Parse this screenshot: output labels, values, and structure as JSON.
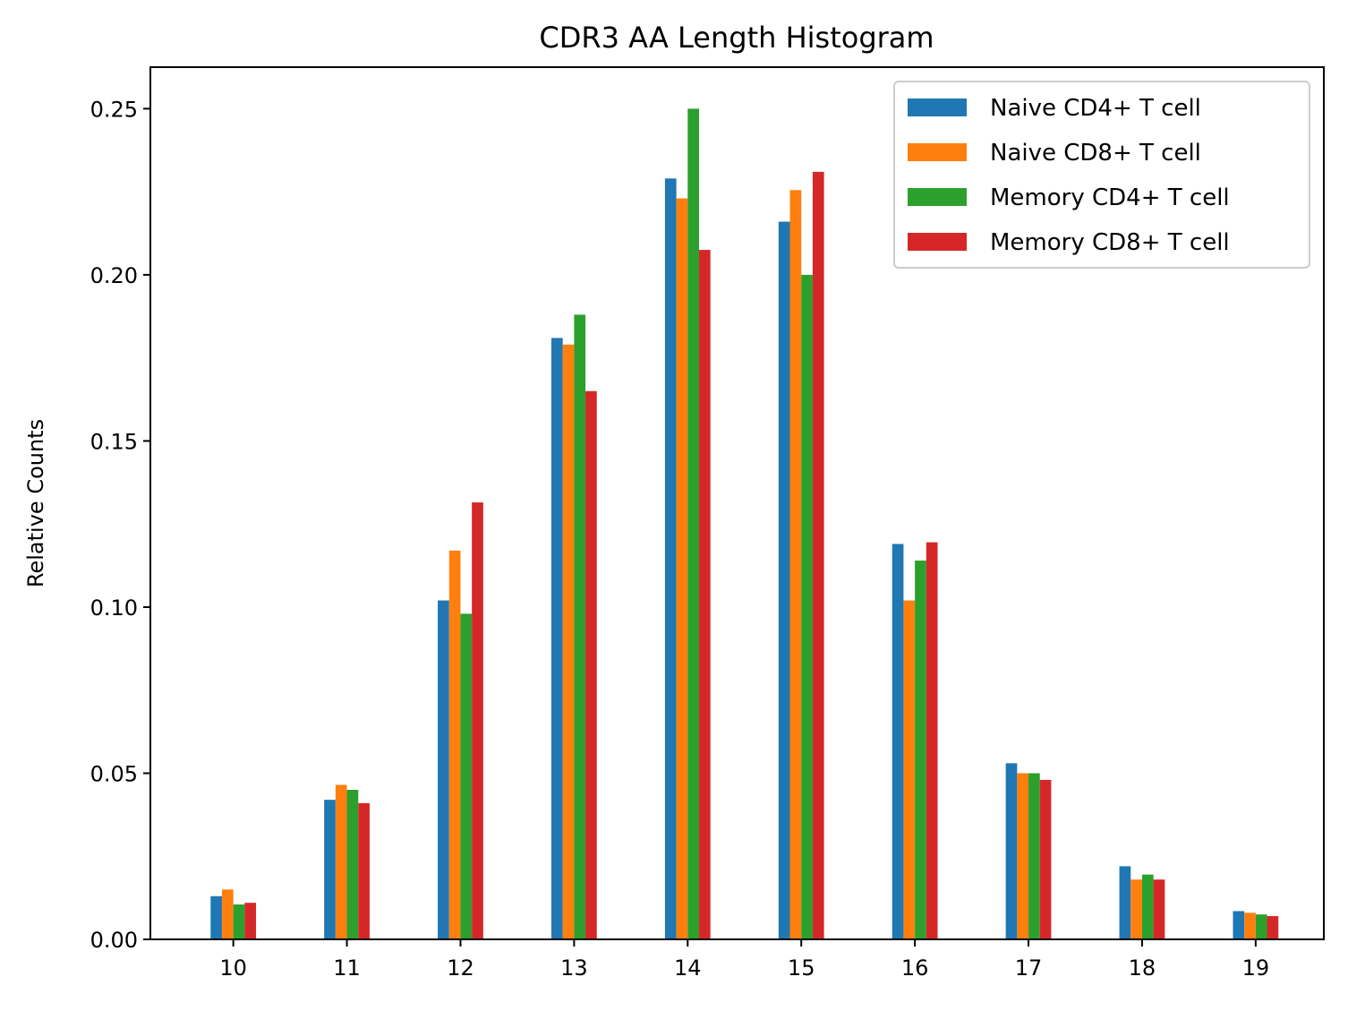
{
  "chart_data": {
    "type": "bar",
    "title": "CDR3 AA Length Histogram",
    "xlabel": "",
    "ylabel": "Relative Counts",
    "ylim": [
      0,
      0.2625
    ],
    "xlim": [
      9.27,
      19.6
    ],
    "grid": false,
    "legend_position": "top-right",
    "categories": [
      "10",
      "11",
      "12",
      "13",
      "14",
      "15",
      "16",
      "17",
      "18",
      "19"
    ],
    "y_ticks": [
      "0.00",
      "0.05",
      "0.10",
      "0.15",
      "0.20",
      "0.25"
    ],
    "series": [
      {
        "name": "Naive CD4+ T cell",
        "color": "#1f77b4",
        "values": [
          0.013,
          0.042,
          0.102,
          0.181,
          0.229,
          0.216,
          0.119,
          0.053,
          0.022,
          0.0085
        ]
      },
      {
        "name": "Naive CD8+ T cell",
        "color": "#ff7f0e",
        "values": [
          0.015,
          0.0465,
          0.117,
          0.179,
          0.223,
          0.2255,
          0.102,
          0.05,
          0.018,
          0.008
        ]
      },
      {
        "name": "Memory CD4+ T cell",
        "color": "#2ca02c",
        "values": [
          0.0105,
          0.045,
          0.098,
          0.188,
          0.25,
          0.2,
          0.114,
          0.05,
          0.0195,
          0.0075
        ]
      },
      {
        "name": "Memory CD8+ T cell",
        "color": "#d62728",
        "values": [
          0.011,
          0.041,
          0.1315,
          0.165,
          0.2075,
          0.231,
          0.1195,
          0.048,
          0.018,
          0.007
        ]
      }
    ]
  }
}
